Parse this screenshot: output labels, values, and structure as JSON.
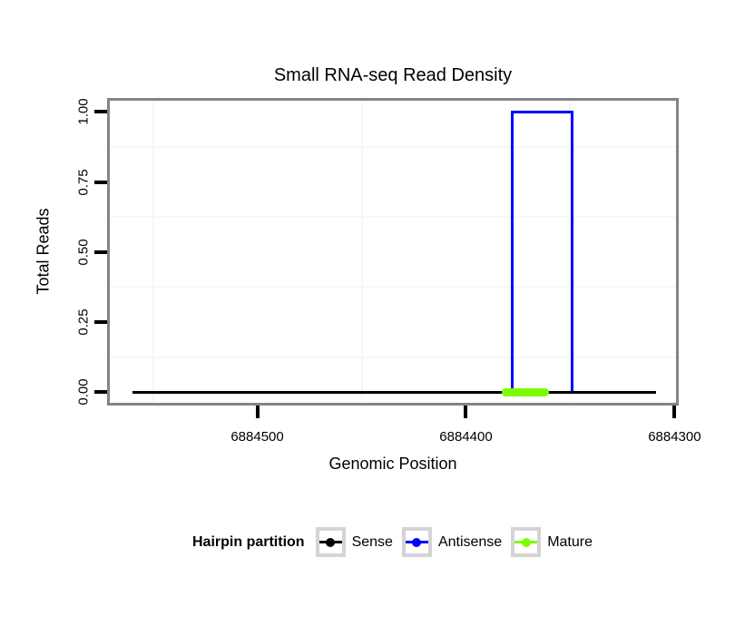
{
  "chart_data": {
    "type": "line",
    "title": "Small RNA-seq Read Density",
    "xlabel": "Genomic Position",
    "ylabel": "Total Reads",
    "x_axis_reversed": true,
    "xlim": [
      6884572,
      6884298
    ],
    "ylim": [
      -0.048,
      1.05
    ],
    "x_ticks": [
      {
        "value": 6884500,
        "label": "6884500"
      },
      {
        "value": 6884400,
        "label": "6884400"
      },
      {
        "value": 6884300,
        "label": "6884300"
      }
    ],
    "y_ticks": [
      {
        "value": 0,
        "label": "0.00"
      },
      {
        "value": 0.25,
        "label": "0.25"
      },
      {
        "value": 0.5,
        "label": "0.50"
      },
      {
        "value": 0.75,
        "label": "0.75"
      },
      {
        "value": 1,
        "label": "1.00"
      }
    ],
    "grid": {
      "x_minor": [
        6884550,
        6884450,
        6884350
      ],
      "y_minor": [
        0.125,
        0.375,
        0.625,
        0.875
      ]
    },
    "legend_title": "Hairpin partition",
    "legend_position": "bottom",
    "series": [
      {
        "name": "Sense",
        "color": "#000000",
        "linewidth": 3,
        "cap": "butt",
        "zindex": 2,
        "points": [
          [
            6884560,
            0
          ],
          [
            6884309,
            0
          ]
        ]
      },
      {
        "name": "Antisense",
        "color": "#0000ff",
        "linewidth": 3,
        "cap": "butt",
        "zindex": 1,
        "points": [
          [
            6884378,
            0
          ],
          [
            6884378,
            1
          ],
          [
            6884349,
            1
          ],
          [
            6884349,
            0
          ]
        ]
      },
      {
        "name": "Mature",
        "color": "#7cfc00",
        "linewidth": 9,
        "cap": "round",
        "zindex": 3,
        "points": [
          [
            6884381,
            0
          ],
          [
            6884362,
            0
          ]
        ]
      }
    ]
  },
  "legend": {
    "title": "Hairpin partition",
    "items": [
      {
        "label": "Sense",
        "color": "#000000"
      },
      {
        "label": "Antisense",
        "color": "#0000ff"
      },
      {
        "label": "Mature",
        "color": "#7cfc00"
      }
    ]
  },
  "colors": {
    "background": "#ffffff",
    "panel_border": "#848484",
    "grid_minor": "#f7f7f7",
    "tick": "#000000",
    "legend_key_border": "#d4d4d4"
  }
}
